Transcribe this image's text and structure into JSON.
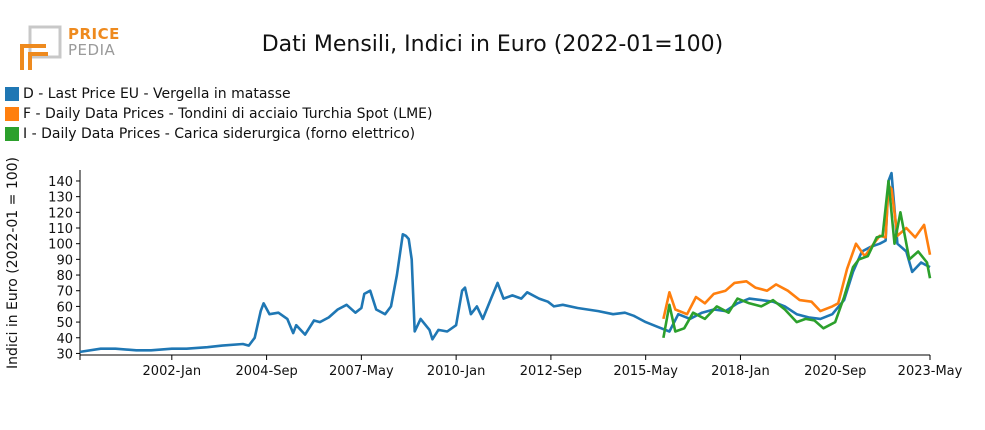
{
  "logo": {
    "line1": "PRICE",
    "line2": "PEDIA"
  },
  "chart_data": {
    "type": "line",
    "title": "Dati Mensili, Indici in Euro (2022-01=100)",
    "ylabel": "Indici in Euro (2022-01 = 100)",
    "xlabel": "",
    "x_range": [
      "1999-06",
      "2023-05"
    ],
    "ylim": [
      29,
      147
    ],
    "y_ticks": [
      30,
      40,
      50,
      60,
      70,
      80,
      90,
      100,
      110,
      120,
      130,
      140
    ],
    "x_ticks": [
      "2002-Jan",
      "2004-Sep",
      "2007-May",
      "2010-Jan",
      "2012-Sep",
      "2015-May",
      "2018-Jan",
      "2020-Sep",
      "2023-May"
    ],
    "grid": false,
    "legend_position": "top-left",
    "series": [
      {
        "name": "D - Last Price EU - Vergella in matasse",
        "color": "#1f77b4",
        "points": [
          [
            "1999-06",
            31
          ],
          [
            "2000-01",
            33
          ],
          [
            "2000-06",
            33
          ],
          [
            "2001-01",
            32
          ],
          [
            "2001-06",
            32
          ],
          [
            "2002-01",
            33
          ],
          [
            "2002-06",
            33
          ],
          [
            "2003-01",
            34
          ],
          [
            "2003-06",
            35
          ],
          [
            "2004-01",
            36
          ],
          [
            "2004-03",
            35
          ],
          [
            "2004-05",
            40
          ],
          [
            "2004-07",
            57
          ],
          [
            "2004-08",
            62
          ],
          [
            "2004-10",
            55
          ],
          [
            "2005-01",
            56
          ],
          [
            "2005-04",
            52
          ],
          [
            "2005-06",
            43
          ],
          [
            "2005-07",
            48
          ],
          [
            "2005-10",
            42
          ],
          [
            "2006-01",
            51
          ],
          [
            "2006-03",
            50
          ],
          [
            "2006-06",
            53
          ],
          [
            "2006-09",
            58
          ],
          [
            "2006-12",
            61
          ],
          [
            "2007-03",
            56
          ],
          [
            "2007-05",
            59
          ],
          [
            "2007-06",
            68
          ],
          [
            "2007-08",
            70
          ],
          [
            "2007-10",
            58
          ],
          [
            "2008-01",
            55
          ],
          [
            "2008-03",
            60
          ],
          [
            "2008-05",
            80
          ],
          [
            "2008-07",
            106
          ],
          [
            "2008-08",
            105
          ],
          [
            "2008-09",
            103
          ],
          [
            "2008-10",
            90
          ],
          [
            "2008-11",
            44
          ],
          [
            "2009-01",
            52
          ],
          [
            "2009-04",
            45
          ],
          [
            "2009-05",
            39
          ],
          [
            "2009-07",
            45
          ],
          [
            "2009-10",
            44
          ],
          [
            "2010-01",
            48
          ],
          [
            "2010-03",
            70
          ],
          [
            "2010-04",
            72
          ],
          [
            "2010-06",
            55
          ],
          [
            "2010-08",
            60
          ],
          [
            "2010-10",
            52
          ],
          [
            "2011-01",
            66
          ],
          [
            "2011-03",
            75
          ],
          [
            "2011-05",
            65
          ],
          [
            "2011-08",
            67
          ],
          [
            "2011-11",
            65
          ],
          [
            "2012-01",
            69
          ],
          [
            "2012-05",
            65
          ],
          [
            "2012-08",
            63
          ],
          [
            "2012-10",
            60
          ],
          [
            "2013-01",
            61
          ],
          [
            "2013-06",
            59
          ],
          [
            "2014-01",
            57
          ],
          [
            "2014-06",
            55
          ],
          [
            "2014-10",
            56
          ],
          [
            "2015-01",
            54
          ],
          [
            "2015-05",
            50
          ],
          [
            "2015-09",
            47
          ],
          [
            "2016-01",
            44
          ],
          [
            "2016-04",
            55
          ],
          [
            "2016-08",
            52
          ],
          [
            "2016-12",
            56
          ],
          [
            "2017-04",
            58
          ],
          [
            "2017-08",
            57
          ],
          [
            "2017-12",
            62
          ],
          [
            "2018-04",
            65
          ],
          [
            "2018-08",
            64
          ],
          [
            "2018-12",
            63
          ],
          [
            "2019-04",
            60
          ],
          [
            "2019-08",
            55
          ],
          [
            "2019-12",
            53
          ],
          [
            "2020-04",
            52
          ],
          [
            "2020-08",
            55
          ],
          [
            "2020-12",
            64
          ],
          [
            "2021-03",
            82
          ],
          [
            "2021-06",
            95
          ],
          [
            "2021-09",
            98
          ],
          [
            "2021-12",
            100
          ],
          [
            "2022-02",
            102
          ],
          [
            "2022-03",
            140
          ],
          [
            "2022-04",
            145
          ],
          [
            "2022-06",
            100
          ],
          [
            "2022-09",
            95
          ],
          [
            "2022-11",
            82
          ],
          [
            "2023-02",
            88
          ],
          [
            "2023-05",
            85
          ]
        ]
      },
      {
        "name": "F - Daily Data Prices - Tondini di acciaio Turchia Spot (LME)",
        "color": "#ff7f0e",
        "points": [
          [
            "2015-11",
            52
          ],
          [
            "2016-01",
            69
          ],
          [
            "2016-03",
            58
          ],
          [
            "2016-07",
            55
          ],
          [
            "2016-10",
            66
          ],
          [
            "2017-01",
            62
          ],
          [
            "2017-04",
            68
          ],
          [
            "2017-08",
            70
          ],
          [
            "2017-11",
            75
          ],
          [
            "2018-03",
            76
          ],
          [
            "2018-06",
            72
          ],
          [
            "2018-10",
            70
          ],
          [
            "2019-01",
            74
          ],
          [
            "2019-05",
            70
          ],
          [
            "2019-09",
            64
          ],
          [
            "2020-01",
            63
          ],
          [
            "2020-04",
            57
          ],
          [
            "2020-08",
            60
          ],
          [
            "2020-10",
            62
          ],
          [
            "2021-01",
            84
          ],
          [
            "2021-04",
            100
          ],
          [
            "2021-07",
            92
          ],
          [
            "2021-10",
            100
          ],
          [
            "2021-12",
            105
          ],
          [
            "2022-02",
            104
          ],
          [
            "2022-03",
            137
          ],
          [
            "2022-04",
            135
          ],
          [
            "2022-06",
            105
          ],
          [
            "2022-09",
            110
          ],
          [
            "2022-12",
            104
          ],
          [
            "2023-03",
            112
          ],
          [
            "2023-05",
            93
          ]
        ]
      },
      {
        "name": "I - Daily Data Prices - Carica siderurgica (forno elettrico)",
        "color": "#2ca02c",
        "points": [
          [
            "2015-11",
            40
          ],
          [
            "2016-01",
            61
          ],
          [
            "2016-03",
            44
          ],
          [
            "2016-06",
            46
          ],
          [
            "2016-09",
            56
          ],
          [
            "2017-01",
            52
          ],
          [
            "2017-05",
            60
          ],
          [
            "2017-09",
            56
          ],
          [
            "2017-12",
            65
          ],
          [
            "2018-04",
            62
          ],
          [
            "2018-08",
            60
          ],
          [
            "2018-12",
            64
          ],
          [
            "2019-04",
            58
          ],
          [
            "2019-08",
            50
          ],
          [
            "2019-11",
            52
          ],
          [
            "2020-02",
            51
          ],
          [
            "2020-05",
            46
          ],
          [
            "2020-09",
            50
          ],
          [
            "2020-12",
            66
          ],
          [
            "2021-03",
            85
          ],
          [
            "2021-05",
            90
          ],
          [
            "2021-08",
            92
          ],
          [
            "2021-11",
            104
          ],
          [
            "2022-01",
            105
          ],
          [
            "2022-03",
            140
          ],
          [
            "2022-05",
            100
          ],
          [
            "2022-07",
            120
          ],
          [
            "2022-10",
            90
          ],
          [
            "2023-01",
            95
          ],
          [
            "2023-04",
            88
          ],
          [
            "2023-05",
            78
          ]
        ]
      }
    ]
  }
}
